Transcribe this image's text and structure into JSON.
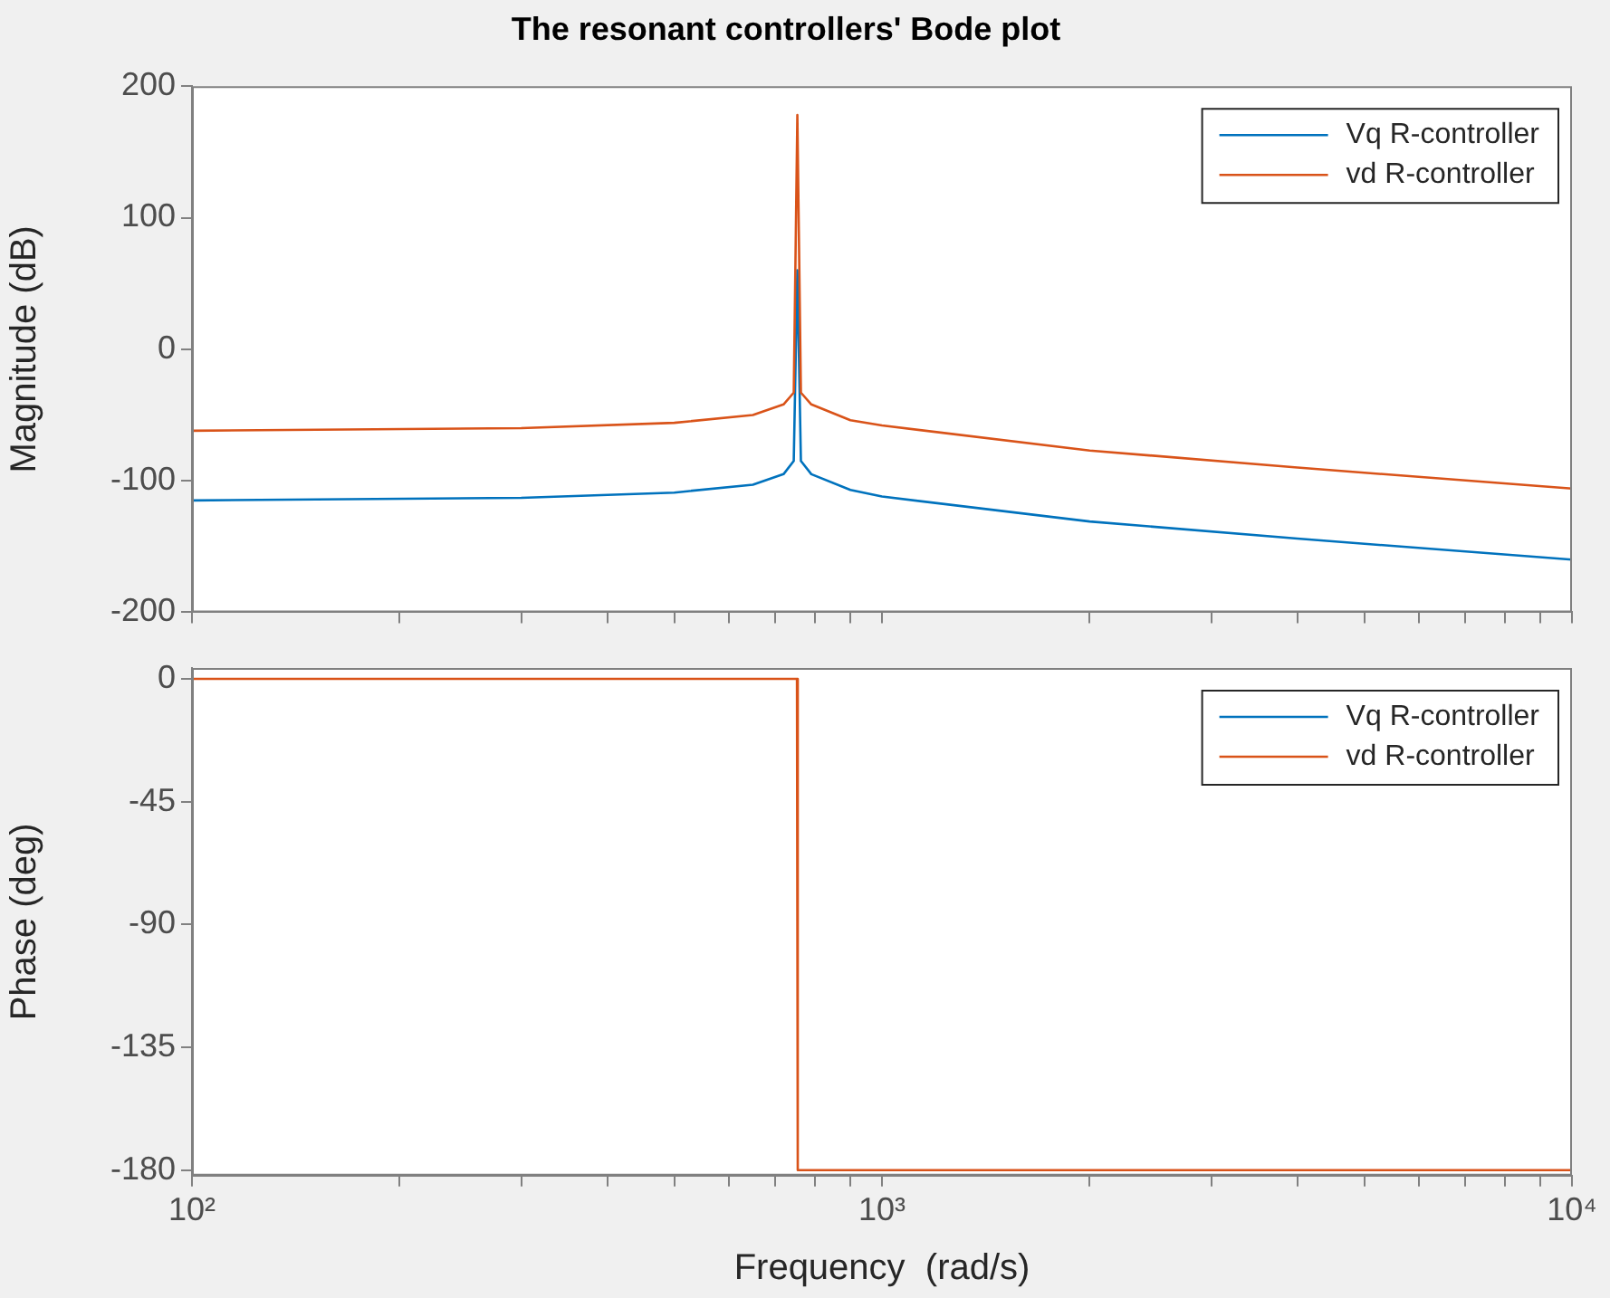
{
  "chart_data": [
    {
      "type": "line",
      "title": "The resonant controllers' Bode plot",
      "ylabel": "Magnitude (dB)",
      "xlim": [
        100,
        10000
      ],
      "ylim": [
        -200,
        200
      ],
      "yticks": [
        -200,
        -100,
        0,
        100,
        200
      ],
      "xticks": [
        {
          "value": 100,
          "label": null
        },
        {
          "value": 200,
          "label": null
        },
        {
          "value": 300,
          "label": null
        },
        {
          "value": 400,
          "label": null
        },
        {
          "value": 500,
          "label": null
        },
        {
          "value": 600,
          "label": null
        },
        {
          "value": 700,
          "label": null
        },
        {
          "value": 800,
          "label": null
        },
        {
          "value": 900,
          "label": null
        },
        {
          "value": 1000,
          "label": null
        },
        {
          "value": 2000,
          "label": null
        },
        {
          "value": 3000,
          "label": null
        },
        {
          "value": 4000,
          "label": null
        },
        {
          "value": 5000,
          "label": null
        },
        {
          "value": 6000,
          "label": null
        },
        {
          "value": 7000,
          "label": null
        },
        {
          "value": 8000,
          "label": null
        },
        {
          "value": 9000,
          "label": null
        },
        {
          "value": 10000,
          "label": null
        }
      ],
      "log": "x",
      "grid": false,
      "legend": "top right",
      "marker": "none",
      "line_style": "solid",
      "tick_labels": "y",
      "series": [
        {
          "name": "Vq R-controller",
          "color": "#0072bd",
          "x": [
            100,
            300,
            500,
            650,
            720,
            745,
            754,
            763,
            790,
            900,
            1000,
            2000,
            4000,
            10000
          ],
          "values": [
            -115,
            -113,
            -109,
            -103,
            -95,
            -85,
            60,
            -85,
            -95,
            -107,
            -112,
            -131,
            -144,
            -160
          ]
        },
        {
          "name": "vd R-controller",
          "color": "#d95319",
          "x": [
            100,
            300,
            500,
            650,
            720,
            745,
            754,
            763,
            790,
            900,
            1000,
            2000,
            4000,
            10000
          ],
          "values": [
            -62,
            -60,
            -56,
            -50,
            -42,
            -33,
            178,
            -33,
            -42,
            -54,
            -58,
            -77,
            -90,
            -106
          ]
        }
      ]
    },
    {
      "type": "line",
      "ylabel": "Phase (deg)",
      "xlabel": "Frequency  (rad/s)",
      "xlim": [
        100,
        10000
      ],
      "ylim": [
        -182,
        4
      ],
      "yticks": [
        0,
        -45,
        -90,
        -135,
        -180
      ],
      "xticks": [
        {
          "value": 100,
          "label": "10²"
        },
        {
          "value": 200,
          "label": null
        },
        {
          "value": 300,
          "label": null
        },
        {
          "value": 400,
          "label": null
        },
        {
          "value": 500,
          "label": null
        },
        {
          "value": 600,
          "label": null
        },
        {
          "value": 700,
          "label": null
        },
        {
          "value": 800,
          "label": null
        },
        {
          "value": 900,
          "label": null
        },
        {
          "value": 1000,
          "label": "10³"
        },
        {
          "value": 2000,
          "label": null
        },
        {
          "value": 3000,
          "label": null
        },
        {
          "value": 4000,
          "label": null
        },
        {
          "value": 5000,
          "label": null
        },
        {
          "value": 6000,
          "label": null
        },
        {
          "value": 7000,
          "label": null
        },
        {
          "value": 8000,
          "label": null
        },
        {
          "value": 9000,
          "label": null
        },
        {
          "value": 10000,
          "label": "10⁴"
        }
      ],
      "log": "x",
      "grid": false,
      "legend": "top right",
      "marker": "none",
      "line_style": "solid",
      "series": [
        {
          "name": "Vq R-controller",
          "color": "#0072bd"
        },
        {
          "name": "vd R-controller",
          "color": "#d95319",
          "x": [
            100,
            753,
            755,
            10000
          ],
          "values": [
            0,
            0,
            -180,
            -180
          ]
        }
      ]
    }
  ]
}
